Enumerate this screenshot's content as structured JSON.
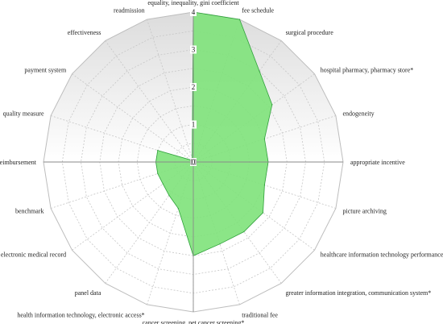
{
  "chart_data": {
    "type": "radar",
    "axes": [
      "equality, inequality, gini coefficient",
      "fee schedule",
      "surgical procedure",
      "hospital pharmacy, pharmacy store*",
      "endogeneity",
      "appropriate incentive",
      "picture archiving",
      "healthcare information technology performance*",
      "greater information integration, communication system*",
      "traditional fee",
      "cancer screening, pet cancer screening*",
      "health information technology, electronic access*",
      "panel data",
      "electronic medical record",
      "benchmark",
      "reimbursement",
      "quality measure",
      "payment system",
      "effectiveness",
      "readmission"
    ],
    "values": [
      4.0,
      4.0,
      3.0,
      2.6,
      2.0,
      2.0,
      2.0,
      2.3,
      2.3,
      2.3,
      2.5,
      1.3,
      1.1,
      1.0,
      1.0,
      1.0,
      1.0,
      0.1,
      0.1,
      0.1
    ],
    "ticks": [
      "0",
      "1",
      "2",
      "3",
      "4"
    ],
    "rmax": 4,
    "grid": true,
    "colors": {
      "fill": "#7ee27a",
      "stroke": "#2ea03a",
      "axis": "#8a8a8a",
      "grid": "#c6c6c6"
    }
  }
}
